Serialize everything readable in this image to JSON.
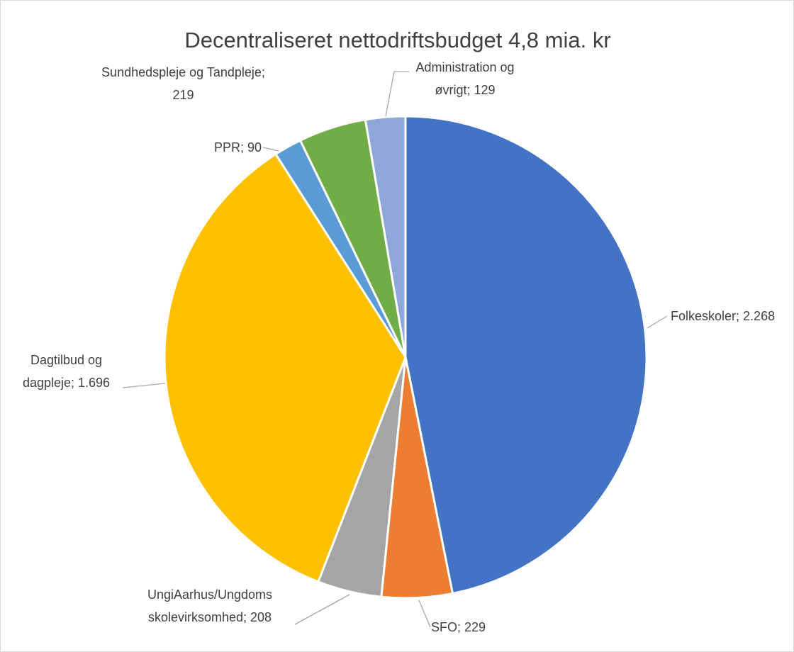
{
  "chart_data": {
    "type": "pie",
    "title": "Decentraliseret nettodriftsbudget 4,8 mia. kr",
    "categories": [
      "Folkeskoler",
      "SFO",
      "UngiAarhus/Ungdoms skolevirksomhed",
      "Dagtilbud og dagpleje",
      "PPR",
      "Sundhedspleje og Tandpleje",
      "Administration og øvrigt"
    ],
    "values": [
      2268,
      229,
      208,
      1696,
      90,
      219,
      129
    ],
    "value_labels": [
      "2.268",
      "229",
      "208",
      "1.696",
      "90",
      "219",
      "129"
    ],
    "label_separator": "; ",
    "colors": [
      "#4472c4",
      "#ed7d31",
      "#a5a5a5",
      "#ffc000",
      "#5b9bd5",
      "#70ad47",
      "#8fa6d8"
    ]
  }
}
